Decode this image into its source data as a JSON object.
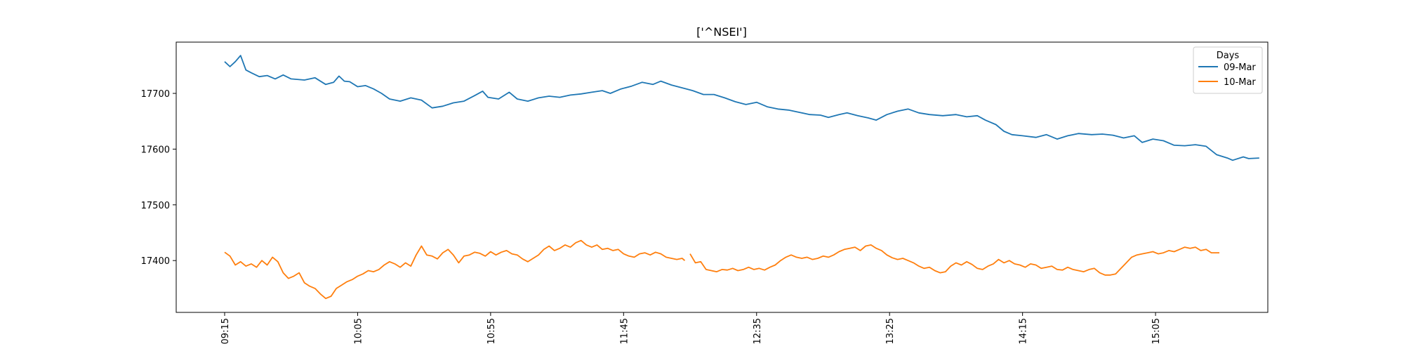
{
  "chart_data": {
    "type": "line",
    "title": "['^NSEI']",
    "xlabel": "",
    "ylabel": "",
    "x_ticks": [
      "09:15",
      "10:05",
      "10:55",
      "11:45",
      "12:35",
      "13:25",
      "14:15",
      "15:05"
    ],
    "x_range": [
      "09:15",
      "15:29"
    ],
    "y_ticks": [
      17400,
      17500,
      17600,
      17700
    ],
    "ylim": [
      17307,
      17792
    ],
    "grid": false,
    "legend": {
      "title": "Days",
      "placement": "top-right"
    },
    "series": [
      {
        "name": "09-Mar",
        "color": "#1f77b4",
        "points": [
          [
            "09:15",
            17757
          ],
          [
            "09:17",
            17748
          ],
          [
            "09:19",
            17757
          ],
          [
            "09:21",
            17768
          ],
          [
            "09:23",
            17742
          ],
          [
            "09:25",
            17737
          ],
          [
            "09:28",
            17730
          ],
          [
            "09:31",
            17732
          ],
          [
            "09:34",
            17726
          ],
          [
            "09:37",
            17733
          ],
          [
            "09:40",
            17726
          ],
          [
            "09:45",
            17724
          ],
          [
            "09:49",
            17728
          ],
          [
            "09:53",
            17716
          ],
          [
            "09:56",
            17720
          ],
          [
            "09:58",
            17731
          ],
          [
            "10:00",
            17722
          ],
          [
            "10:02",
            17721
          ],
          [
            "10:05",
            17712
          ],
          [
            "10:08",
            17714
          ],
          [
            "10:11",
            17708
          ],
          [
            "10:14",
            17700
          ],
          [
            "10:17",
            17690
          ],
          [
            "10:21",
            17686
          ],
          [
            "10:25",
            17692
          ],
          [
            "10:29",
            17688
          ],
          [
            "10:33",
            17674
          ],
          [
            "10:37",
            17677
          ],
          [
            "10:41",
            17683
          ],
          [
            "10:45",
            17686
          ],
          [
            "10:49",
            17696
          ],
          [
            "10:52",
            17704
          ],
          [
            "10:54",
            17693
          ],
          [
            "10:58",
            17690
          ],
          [
            "11:02",
            17702
          ],
          [
            "11:05",
            17690
          ],
          [
            "11:09",
            17686
          ],
          [
            "11:13",
            17692
          ],
          [
            "11:17",
            17695
          ],
          [
            "11:21",
            17693
          ],
          [
            "11:25",
            17697
          ],
          [
            "11:29",
            17699
          ],
          [
            "11:33",
            17702
          ],
          [
            "11:37",
            17705
          ],
          [
            "11:40",
            17700
          ],
          [
            "11:44",
            17708
          ],
          [
            "11:48",
            17713
          ],
          [
            "11:52",
            17720
          ],
          [
            "11:56",
            17716
          ],
          [
            "11:59",
            17722
          ],
          [
            "12:03",
            17715
          ],
          [
            "12:07",
            17710
          ],
          [
            "12:11",
            17705
          ],
          [
            "12:15",
            17698
          ],
          [
            "12:19",
            17698
          ],
          [
            "12:23",
            17692
          ],
          [
            "12:27",
            17685
          ],
          [
            "12:31",
            17680
          ],
          [
            "12:35",
            17684
          ],
          [
            "12:39",
            17676
          ],
          [
            "12:43",
            17672
          ],
          [
            "12:47",
            17670
          ],
          [
            "12:51",
            17666
          ],
          [
            "12:55",
            17662
          ],
          [
            "12:59",
            17661
          ],
          [
            "13:02",
            17657
          ],
          [
            "13:06",
            17662
          ],
          [
            "13:09",
            17665
          ],
          [
            "13:13",
            17660
          ],
          [
            "13:17",
            17656
          ],
          [
            "13:20",
            17652
          ],
          [
            "13:24",
            17662
          ],
          [
            "13:28",
            17668
          ],
          [
            "13:32",
            17672
          ],
          [
            "13:36",
            17665
          ],
          [
            "13:40",
            17662
          ],
          [
            "13:45",
            17660
          ],
          [
            "13:50",
            17662
          ],
          [
            "13:54",
            17658
          ],
          [
            "13:58",
            17660
          ],
          [
            "14:01",
            17652
          ],
          [
            "14:05",
            17644
          ],
          [
            "14:08",
            17632
          ],
          [
            "14:11",
            17626
          ],
          [
            "14:15",
            17624
          ],
          [
            "14:20",
            17621
          ],
          [
            "14:24",
            17626
          ],
          [
            "14:28",
            17618
          ],
          [
            "14:32",
            17624
          ],
          [
            "14:36",
            17628
          ],
          [
            "14:41",
            17626
          ],
          [
            "14:45",
            17627
          ],
          [
            "14:49",
            17625
          ],
          [
            "14:53",
            17620
          ],
          [
            "14:57",
            17624
          ],
          [
            "15:00",
            17612
          ],
          [
            "15:04",
            17618
          ],
          [
            "15:08",
            17615
          ],
          [
            "15:12",
            17607
          ],
          [
            "15:16",
            17606
          ],
          [
            "15:20",
            17608
          ],
          [
            "15:24",
            17605
          ],
          [
            "15:28",
            17590
          ],
          [
            "15:32",
            17584
          ],
          [
            "15:34",
            17580
          ],
          [
            "15:38",
            17586
          ],
          [
            "15:40",
            17583
          ],
          [
            "15:44",
            17584
          ]
        ]
      },
      {
        "name": "10-Mar",
        "color": "#ff7f0e",
        "points": [
          [
            "09:15",
            17415
          ],
          [
            "09:17",
            17408
          ],
          [
            "09:19",
            17392
          ],
          [
            "09:21",
            17398
          ],
          [
            "09:23",
            17390
          ],
          [
            "09:25",
            17394
          ],
          [
            "09:27",
            17388
          ],
          [
            "09:29",
            17400
          ],
          [
            "09:31",
            17392
          ],
          [
            "09:33",
            17406
          ],
          [
            "09:35",
            17398
          ],
          [
            "09:37",
            17378
          ],
          [
            "09:39",
            17368
          ],
          [
            "09:41",
            17372
          ],
          [
            "09:43",
            17378
          ],
          [
            "09:45",
            17360
          ],
          [
            "09:47",
            17354
          ],
          [
            "09:49",
            17350
          ],
          [
            "09:51",
            17340
          ],
          [
            "09:53",
            17332
          ],
          [
            "09:55",
            17336
          ],
          [
            "09:57",
            17350
          ],
          [
            "09:59",
            17356
          ],
          [
            "10:01",
            17362
          ],
          [
            "10:03",
            17366
          ],
          [
            "10:05",
            17372
          ],
          [
            "10:07",
            17376
          ],
          [
            "10:09",
            17382
          ],
          [
            "10:11",
            17380
          ],
          [
            "10:13",
            17384
          ],
          [
            "10:15",
            17392
          ],
          [
            "10:17",
            17398
          ],
          [
            "10:19",
            17394
          ],
          [
            "10:21",
            17388
          ],
          [
            "10:23",
            17396
          ],
          [
            "10:25",
            17390
          ],
          [
            "10:27",
            17410
          ],
          [
            "10:29",
            17426
          ],
          [
            "10:31",
            17410
          ],
          [
            "10:33",
            17408
          ],
          [
            "10:35",
            17403
          ],
          [
            "10:37",
            17414
          ],
          [
            "10:39",
            17420
          ],
          [
            "10:41",
            17410
          ],
          [
            "10:43",
            17396
          ],
          [
            "10:45",
            17408
          ],
          [
            "10:47",
            17410
          ],
          [
            "10:49",
            17415
          ],
          [
            "10:51",
            17413
          ],
          [
            "10:53",
            17408
          ],
          [
            "10:55",
            17416
          ],
          [
            "10:57",
            17410
          ],
          [
            "10:59",
            17415
          ],
          [
            "11:01",
            17418
          ],
          [
            "11:03",
            17412
          ],
          [
            "11:05",
            17410
          ],
          [
            "11:07",
            17403
          ],
          [
            "11:09",
            17398
          ],
          [
            "11:11",
            17404
          ],
          [
            "11:13",
            17410
          ],
          [
            "11:15",
            17420
          ],
          [
            "11:17",
            17426
          ],
          [
            "11:19",
            17418
          ],
          [
            "11:21",
            17422
          ],
          [
            "11:23",
            17428
          ],
          [
            "11:25",
            17424
          ],
          [
            "11:27",
            17432
          ],
          [
            "11:29",
            17436
          ],
          [
            "11:31",
            17428
          ],
          [
            "11:33",
            17424
          ],
          [
            "11:35",
            17428
          ],
          [
            "11:37",
            17420
          ],
          [
            "11:39",
            17422
          ],
          [
            "11:41",
            17418
          ],
          [
            "11:43",
            17420
          ],
          [
            "11:45",
            17412
          ],
          [
            "11:47",
            17408
          ],
          [
            "11:49",
            17406
          ],
          [
            "11:51",
            17412
          ],
          [
            "11:53",
            17414
          ],
          [
            "11:55",
            17410
          ],
          [
            "11:57",
            17415
          ],
          [
            "11:59",
            17412
          ],
          [
            "12:01",
            17406
          ],
          [
            "12:03",
            17404
          ],
          [
            "12:05",
            17402
          ],
          [
            "12:07",
            17404
          ],
          [
            "12:08",
            17400
          ],
          null,
          [
            "12:10",
            17412
          ],
          [
            "12:12",
            17396
          ],
          [
            "12:14",
            17398
          ],
          [
            "12:16",
            17384
          ],
          [
            "12:18",
            17382
          ],
          [
            "12:20",
            17380
          ],
          [
            "12:22",
            17384
          ],
          [
            "12:24",
            17383
          ],
          [
            "12:26",
            17386
          ],
          [
            "12:28",
            17382
          ],
          [
            "12:30",
            17384
          ],
          [
            "12:32",
            17388
          ],
          [
            "12:34",
            17384
          ],
          [
            "12:36",
            17386
          ],
          [
            "12:38",
            17383
          ],
          [
            "12:40",
            17388
          ],
          [
            "12:42",
            17392
          ],
          [
            "12:44",
            17400
          ],
          [
            "12:46",
            17406
          ],
          [
            "12:48",
            17410
          ],
          [
            "12:50",
            17406
          ],
          [
            "12:52",
            17404
          ],
          [
            "12:54",
            17406
          ],
          [
            "12:56",
            17402
          ],
          [
            "12:58",
            17404
          ],
          [
            "13:00",
            17408
          ],
          [
            "13:02",
            17406
          ],
          [
            "13:04",
            17410
          ],
          [
            "13:06",
            17416
          ],
          [
            "13:08",
            17420
          ],
          [
            "13:10",
            17422
          ],
          [
            "13:12",
            17424
          ],
          [
            "13:14",
            17418
          ],
          [
            "13:16",
            17426
          ],
          [
            "13:18",
            17428
          ],
          [
            "13:20",
            17422
          ],
          [
            "13:22",
            17418
          ],
          [
            "13:24",
            17410
          ],
          [
            "13:26",
            17405
          ],
          [
            "13:28",
            17402
          ],
          [
            "13:30",
            17404
          ],
          [
            "13:32",
            17400
          ],
          [
            "13:34",
            17396
          ],
          [
            "13:36",
            17390
          ],
          [
            "13:38",
            17386
          ],
          [
            "13:40",
            17388
          ],
          [
            "13:42",
            17382
          ],
          [
            "13:44",
            17378
          ],
          [
            "13:46",
            17380
          ],
          [
            "13:48",
            17390
          ],
          [
            "13:50",
            17396
          ],
          [
            "13:52",
            17392
          ],
          [
            "13:54",
            17398
          ],
          [
            "13:56",
            17393
          ],
          [
            "13:58",
            17386
          ],
          [
            "14:00",
            17384
          ],
          [
            "14:02",
            17390
          ],
          [
            "14:04",
            17394
          ],
          [
            "14:06",
            17402
          ],
          [
            "14:08",
            17396
          ],
          [
            "14:10",
            17400
          ],
          [
            "14:12",
            17394
          ],
          [
            "14:14",
            17392
          ],
          [
            "14:16",
            17388
          ],
          [
            "14:18",
            17394
          ],
          [
            "14:20",
            17392
          ],
          [
            "14:22",
            17386
          ],
          [
            "14:24",
            17388
          ],
          [
            "14:26",
            17390
          ],
          [
            "14:28",
            17384
          ],
          [
            "14:30",
            17383
          ],
          [
            "14:32",
            17388
          ],
          [
            "14:34",
            17384
          ],
          [
            "14:36",
            17382
          ],
          [
            "14:38",
            17380
          ],
          [
            "14:40",
            17384
          ],
          [
            "14:42",
            17386
          ],
          [
            "14:44",
            17378
          ],
          [
            "14:46",
            17374
          ],
          [
            "14:48",
            17374
          ],
          [
            "14:50",
            17376
          ],
          [
            "14:52",
            17386
          ],
          [
            "14:54",
            17396
          ],
          [
            "14:56",
            17406
          ],
          [
            "14:58",
            17410
          ],
          [
            "15:00",
            17412
          ],
          [
            "15:02",
            17414
          ],
          [
            "15:04",
            17416
          ],
          [
            "15:06",
            17412
          ],
          [
            "15:08",
            17414
          ],
          [
            "15:10",
            17418
          ],
          [
            "15:12",
            17416
          ],
          [
            "15:14",
            17420
          ],
          [
            "15:16",
            17424
          ],
          [
            "15:18",
            17422
          ],
          [
            "15:20",
            17424
          ],
          [
            "15:22",
            17418
          ],
          [
            "15:24",
            17420
          ],
          [
            "15:26",
            17414
          ],
          [
            "15:29",
            17414
          ]
        ]
      }
    ]
  }
}
